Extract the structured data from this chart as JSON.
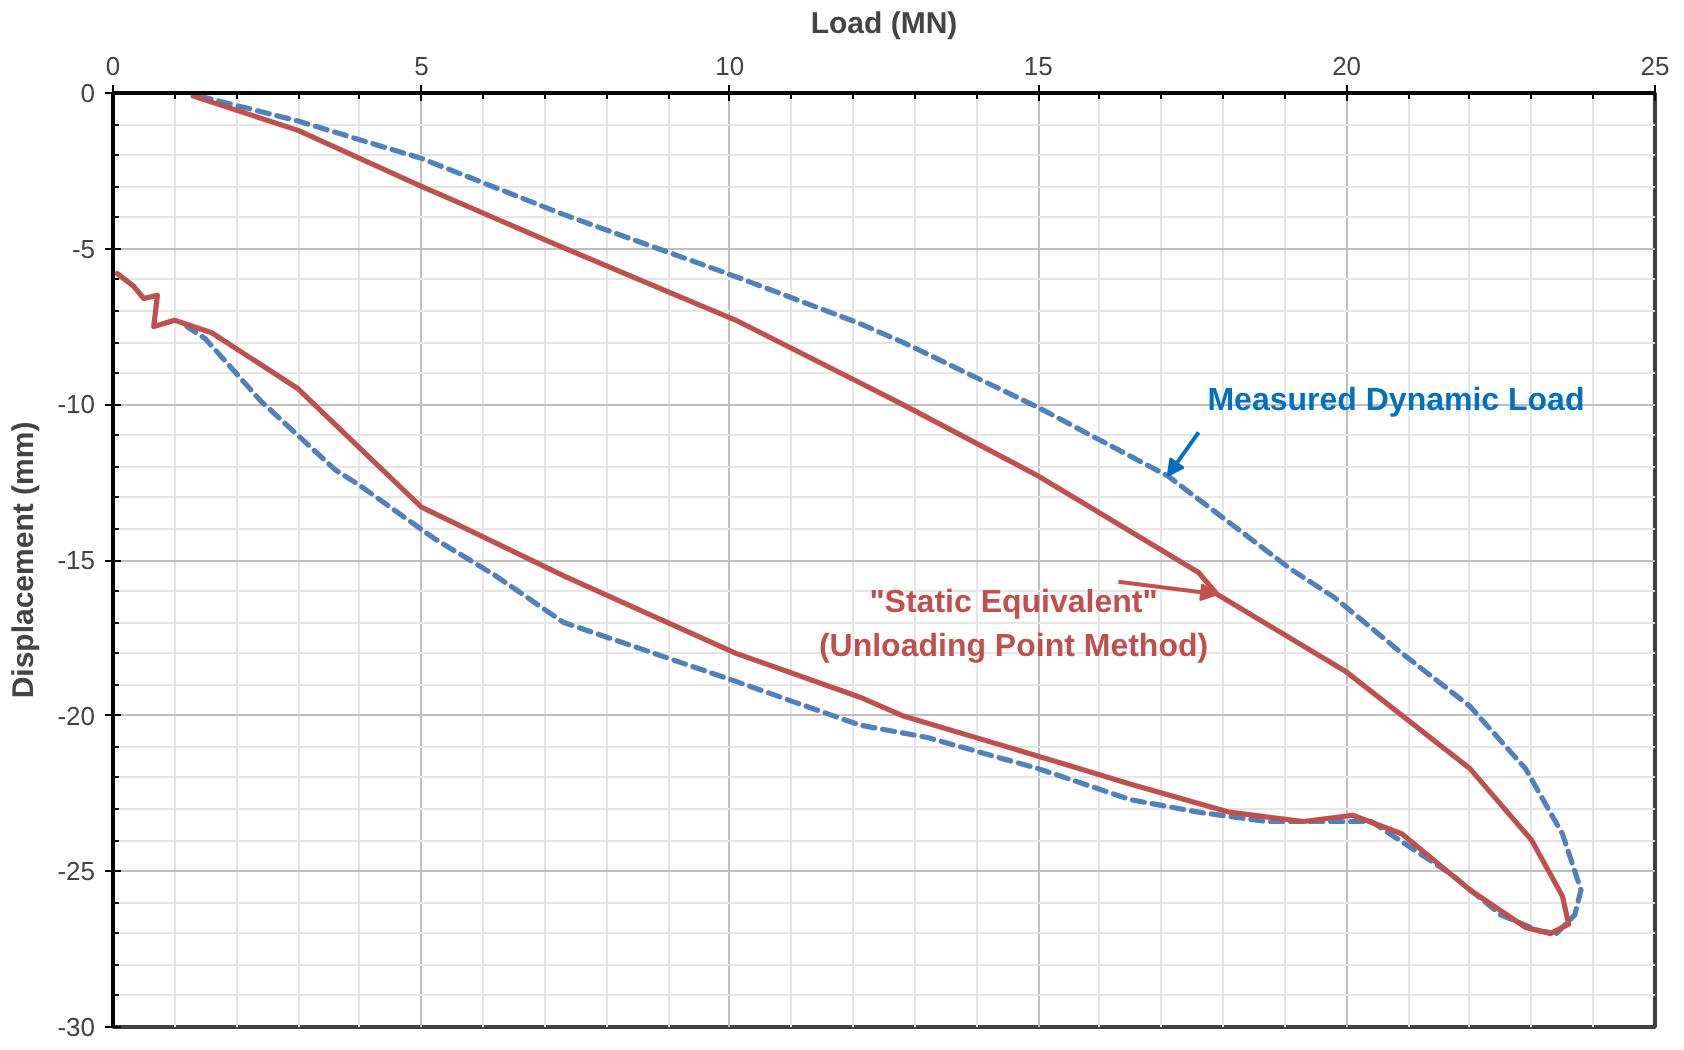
{
  "chart_data": {
    "type": "line",
    "xlabel": "Load (MN)",
    "ylabel": "Displacement (mm)",
    "xlim": [
      0,
      25
    ],
    "ylim": [
      -30,
      0
    ],
    "xticks": [
      0,
      5,
      10,
      15,
      20,
      25
    ],
    "yticks": [
      -30,
      -25,
      -20,
      -15,
      -10,
      -5,
      0
    ],
    "grid": true,
    "series": [
      {
        "name": "Measured Dynamic Load",
        "color": "#4f81bd",
        "line_style": "dashed",
        "x": [
          1.4,
          3.0,
          5.0,
          7.3,
          10.1,
          12.1,
          12.8,
          15.0,
          17.1,
          19.1,
          19.8,
          20.9,
          22.0,
          22.9,
          23.5,
          23.8,
          23.7,
          23.4,
          23.1,
          22.5,
          21.7,
          20.4,
          19.8,
          18.7,
          17.6,
          16.5,
          15.0,
          13.2,
          12.1,
          10.1,
          7.3,
          6.2,
          5.2,
          4.0,
          3.6,
          2.4,
          1.5,
          1.2
        ],
        "values": [
          -0.1,
          -0.9,
          -2.1,
          -3.9,
          -5.9,
          -7.4,
          -8.0,
          -10.1,
          -12.3,
          -15.3,
          -16.2,
          -18.0,
          -19.7,
          -21.7,
          -23.8,
          -25.6,
          -26.4,
          -27.0,
          -26.9,
          -26.4,
          -25.1,
          -23.4,
          -23.4,
          -23.4,
          -23.1,
          -22.7,
          -21.7,
          -20.7,
          -20.3,
          -18.9,
          -17.0,
          -15.5,
          -14.3,
          -12.6,
          -12.1,
          -9.9,
          -7.9,
          -7.5
        ]
      },
      {
        "name": "\"Static Equivalent\"\n(Unloading Point Method)",
        "color": "#c0504d",
        "line_style": "solid",
        "x": [
          1.3,
          3.0,
          5.0,
          7.1,
          10.1,
          12.1,
          12.8,
          15.0,
          17.6,
          17.9,
          20.0,
          22.0,
          23.0,
          23.5,
          23.6,
          23.3,
          22.9,
          22.0,
          20.9,
          20.1,
          19.3,
          18.1,
          16.5,
          15.0,
          12.8,
          12.1,
          10.1,
          7.3,
          5.0,
          3.0,
          1.6,
          1.0,
          0.66,
          0.72,
          0.5,
          0.33,
          0.07
        ],
        "values": [
          -0.1,
          -1.2,
          -3.0,
          -4.8,
          -7.3,
          -9.3,
          -10.0,
          -12.3,
          -15.4,
          -16.1,
          -18.6,
          -21.7,
          -24.0,
          -25.8,
          -26.7,
          -27.0,
          -26.8,
          -25.6,
          -23.8,
          -23.2,
          -23.4,
          -23.1,
          -22.2,
          -21.3,
          -20.0,
          -19.4,
          -18.0,
          -15.5,
          -13.3,
          -9.5,
          -7.7,
          -7.3,
          -7.5,
          -6.5,
          -6.6,
          -6.2,
          -5.8
        ]
      }
    ]
  }
}
